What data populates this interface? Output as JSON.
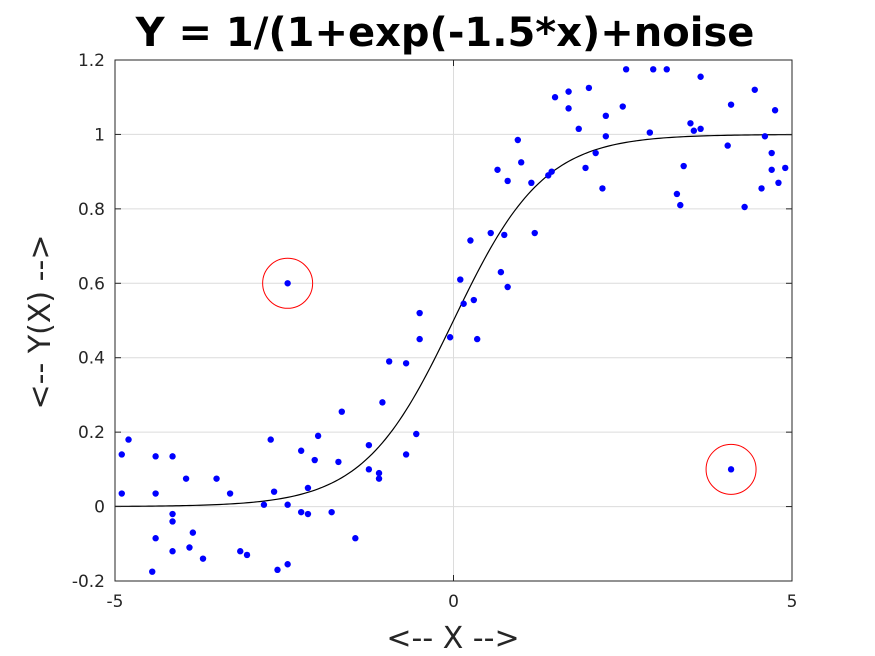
{
  "chart_data": {
    "type": "scatter",
    "title": "Y = 1/(1+exp(-1.5*x)+noise",
    "xlabel": "<-- X -->",
    "ylabel": "<-- Y(X) -->",
    "xlim": [
      -5,
      5
    ],
    "ylim": [
      -0.2,
      1.2
    ],
    "grid": true,
    "xticks": [
      -5,
      0,
      5
    ],
    "yticks": [
      -0.2,
      0,
      0.2,
      0.4,
      0.6,
      0.8,
      1,
      1.2
    ],
    "xtick_labels": [
      "-5",
      "0",
      "5"
    ],
    "ytick_labels": [
      "-0.2",
      "0",
      "0.2",
      "0.4",
      "0.6",
      "0.8",
      "1",
      "1.2"
    ],
    "colors": {
      "points": "#0000ff",
      "curve": "#000000",
      "outlier_circles": "#ff0000"
    },
    "points": [
      [
        -4.9,
        0.14
      ],
      [
        -4.9,
        0.035
      ],
      [
        -4.8,
        0.18
      ],
      [
        -4.45,
        -0.175
      ],
      [
        -4.4,
        0.035
      ],
      [
        -4.4,
        0.135
      ],
      [
        -4.4,
        -0.085
      ],
      [
        -4.15,
        -0.02
      ],
      [
        -4.15,
        -0.04
      ],
      [
        -4.15,
        0.135
      ],
      [
        -4.15,
        -0.12
      ],
      [
        -3.95,
        0.075
      ],
      [
        -3.9,
        -0.11
      ],
      [
        -3.85,
        -0.07
      ],
      [
        -3.7,
        -0.14
      ],
      [
        -3.5,
        0.075
      ],
      [
        -3.3,
        0.035
      ],
      [
        -3.15,
        -0.12
      ],
      [
        -3.05,
        -0.13
      ],
      [
        -2.8,
        0.005
      ],
      [
        -2.7,
        0.18
      ],
      [
        -2.65,
        0.04
      ],
      [
        -2.6,
        -0.17
      ],
      [
        -2.45,
        -0.155
      ],
      [
        -2.45,
        0.005
      ],
      [
        -2.25,
        0.15
      ],
      [
        -2.25,
        -0.015
      ],
      [
        -2.15,
        0.05
      ],
      [
        -2.15,
        -0.02
      ],
      [
        -2.05,
        0.125
      ],
      [
        -2.0,
        0.19
      ],
      [
        -1.8,
        -0.015
      ],
      [
        -1.7,
        0.12
      ],
      [
        -1.65,
        0.255
      ],
      [
        -1.45,
        -0.085
      ],
      [
        -1.25,
        0.165
      ],
      [
        -1.25,
        0.1
      ],
      [
        -1.1,
        0.09
      ],
      [
        -1.1,
        0.075
      ],
      [
        -1.05,
        0.28
      ],
      [
        -0.95,
        0.39
      ],
      [
        -0.7,
        0.14
      ],
      [
        -0.7,
        0.385
      ],
      [
        -0.55,
        0.195
      ],
      [
        -0.5,
        0.45
      ],
      [
        -0.5,
        0.52
      ],
      [
        -0.05,
        0.455
      ],
      [
        0.1,
        0.61
      ],
      [
        0.15,
        0.545
      ],
      [
        0.25,
        0.715
      ],
      [
        0.3,
        0.555
      ],
      [
        0.35,
        0.45
      ],
      [
        0.55,
        0.735
      ],
      [
        0.65,
        0.905
      ],
      [
        0.7,
        0.63
      ],
      [
        0.75,
        0.73
      ],
      [
        0.8,
        0.875
      ],
      [
        0.8,
        0.59
      ],
      [
        0.95,
        0.985
      ],
      [
        1.0,
        0.925
      ],
      [
        1.15,
        0.87
      ],
      [
        1.2,
        0.735
      ],
      [
        1.4,
        0.89
      ],
      [
        1.45,
        0.9
      ],
      [
        1.5,
        1.1
      ],
      [
        1.7,
        1.07
      ],
      [
        1.7,
        1.115
      ],
      [
        1.85,
        1.015
      ],
      [
        1.95,
        0.91
      ],
      [
        2.0,
        1.125
      ],
      [
        2.1,
        0.95
      ],
      [
        2.2,
        0.855
      ],
      [
        2.25,
        1.05
      ],
      [
        2.25,
        0.995
      ],
      [
        2.5,
        1.075
      ],
      [
        2.55,
        1.175
      ],
      [
        2.9,
        1.005
      ],
      [
        2.95,
        1.175
      ],
      [
        3.15,
        1.175
      ],
      [
        3.3,
        0.84
      ],
      [
        3.35,
        0.81
      ],
      [
        3.4,
        0.915
      ],
      [
        3.5,
        1.03
      ],
      [
        3.55,
        1.01
      ],
      [
        3.65,
        1.015
      ],
      [
        3.65,
        1.155
      ],
      [
        4.05,
        0.97
      ],
      [
        4.1,
        1.08
      ],
      [
        4.1,
        0.1
      ],
      [
        4.3,
        0.805
      ],
      [
        4.45,
        1.12
      ],
      [
        4.55,
        0.855
      ],
      [
        4.6,
        0.995
      ],
      [
        4.7,
        0.905
      ],
      [
        4.7,
        0.95
      ],
      [
        4.75,
        1.065
      ],
      [
        4.8,
        0.87
      ],
      [
        4.9,
        0.91
      ],
      [
        -2.45,
        0.6
      ]
    ],
    "curve": {
      "label": "",
      "formula": "1/(1+exp(-1.5*x))"
    },
    "outliers": [
      [
        -2.45,
        0.6
      ],
      [
        4.1,
        0.1
      ]
    ]
  }
}
